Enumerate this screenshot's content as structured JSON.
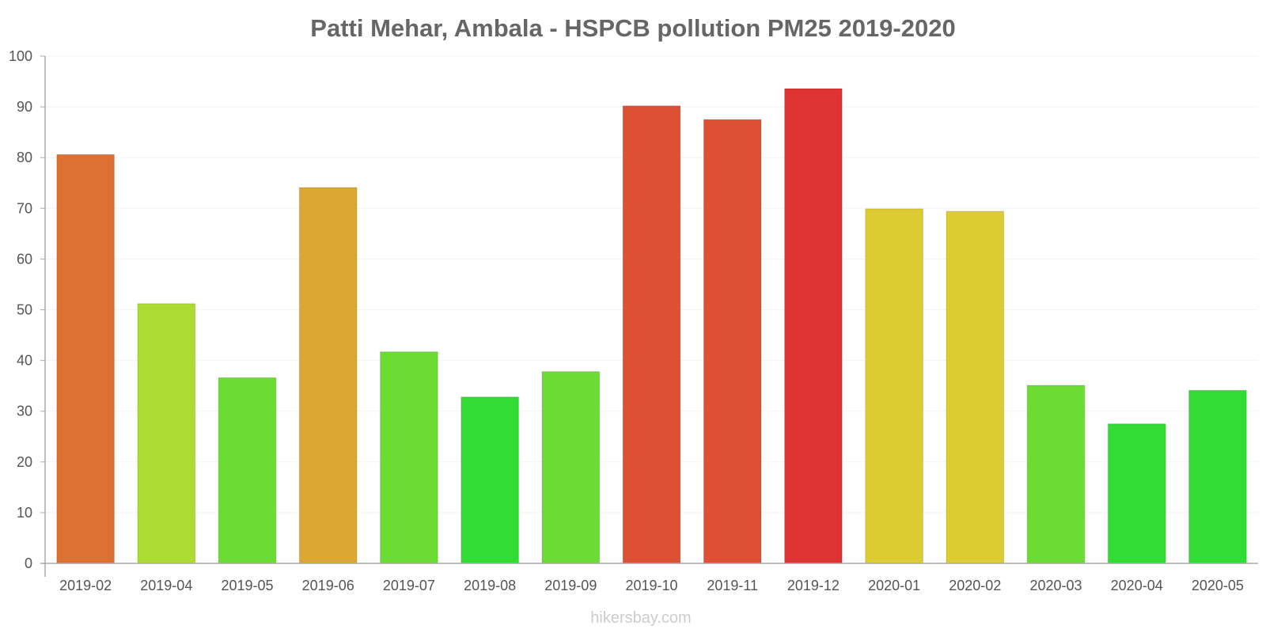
{
  "chart_data": {
    "type": "bar",
    "title": "Patti Mehar, Ambala - HSPCB pollution PM25 2019-2020",
    "xlabel": "",
    "ylabel": "",
    "ylim": [
      0,
      100
    ],
    "yticks": [
      0,
      10,
      20,
      30,
      40,
      50,
      60,
      70,
      80,
      90,
      100
    ],
    "grid": true,
    "categories": [
      "2019-02",
      "2019-04",
      "2019-05",
      "2019-06",
      "2019-07",
      "2019-08",
      "2019-09",
      "2019-10",
      "2019-11",
      "2019-12",
      "2020-01",
      "2020-02",
      "2020-03",
      "2020-04",
      "2020-05"
    ],
    "values": [
      80.6,
      51.2,
      36.6,
      74.1,
      41.7,
      32.8,
      37.8,
      90.2,
      87.5,
      93.6,
      69.9,
      69.4,
      35.1,
      27.5,
      34.1
    ],
    "colors": [
      "#dd7033",
      "#acdc33",
      "#6adc33",
      "#dca833",
      "#6adc33",
      "#33dc33",
      "#6adc33",
      "#dd5033",
      "#dd5033",
      "#dd3333",
      "#dccb33",
      "#dccb33",
      "#6adc33",
      "#33dc33",
      "#33dc33"
    ]
  },
  "watermark": "hikersbay.com"
}
